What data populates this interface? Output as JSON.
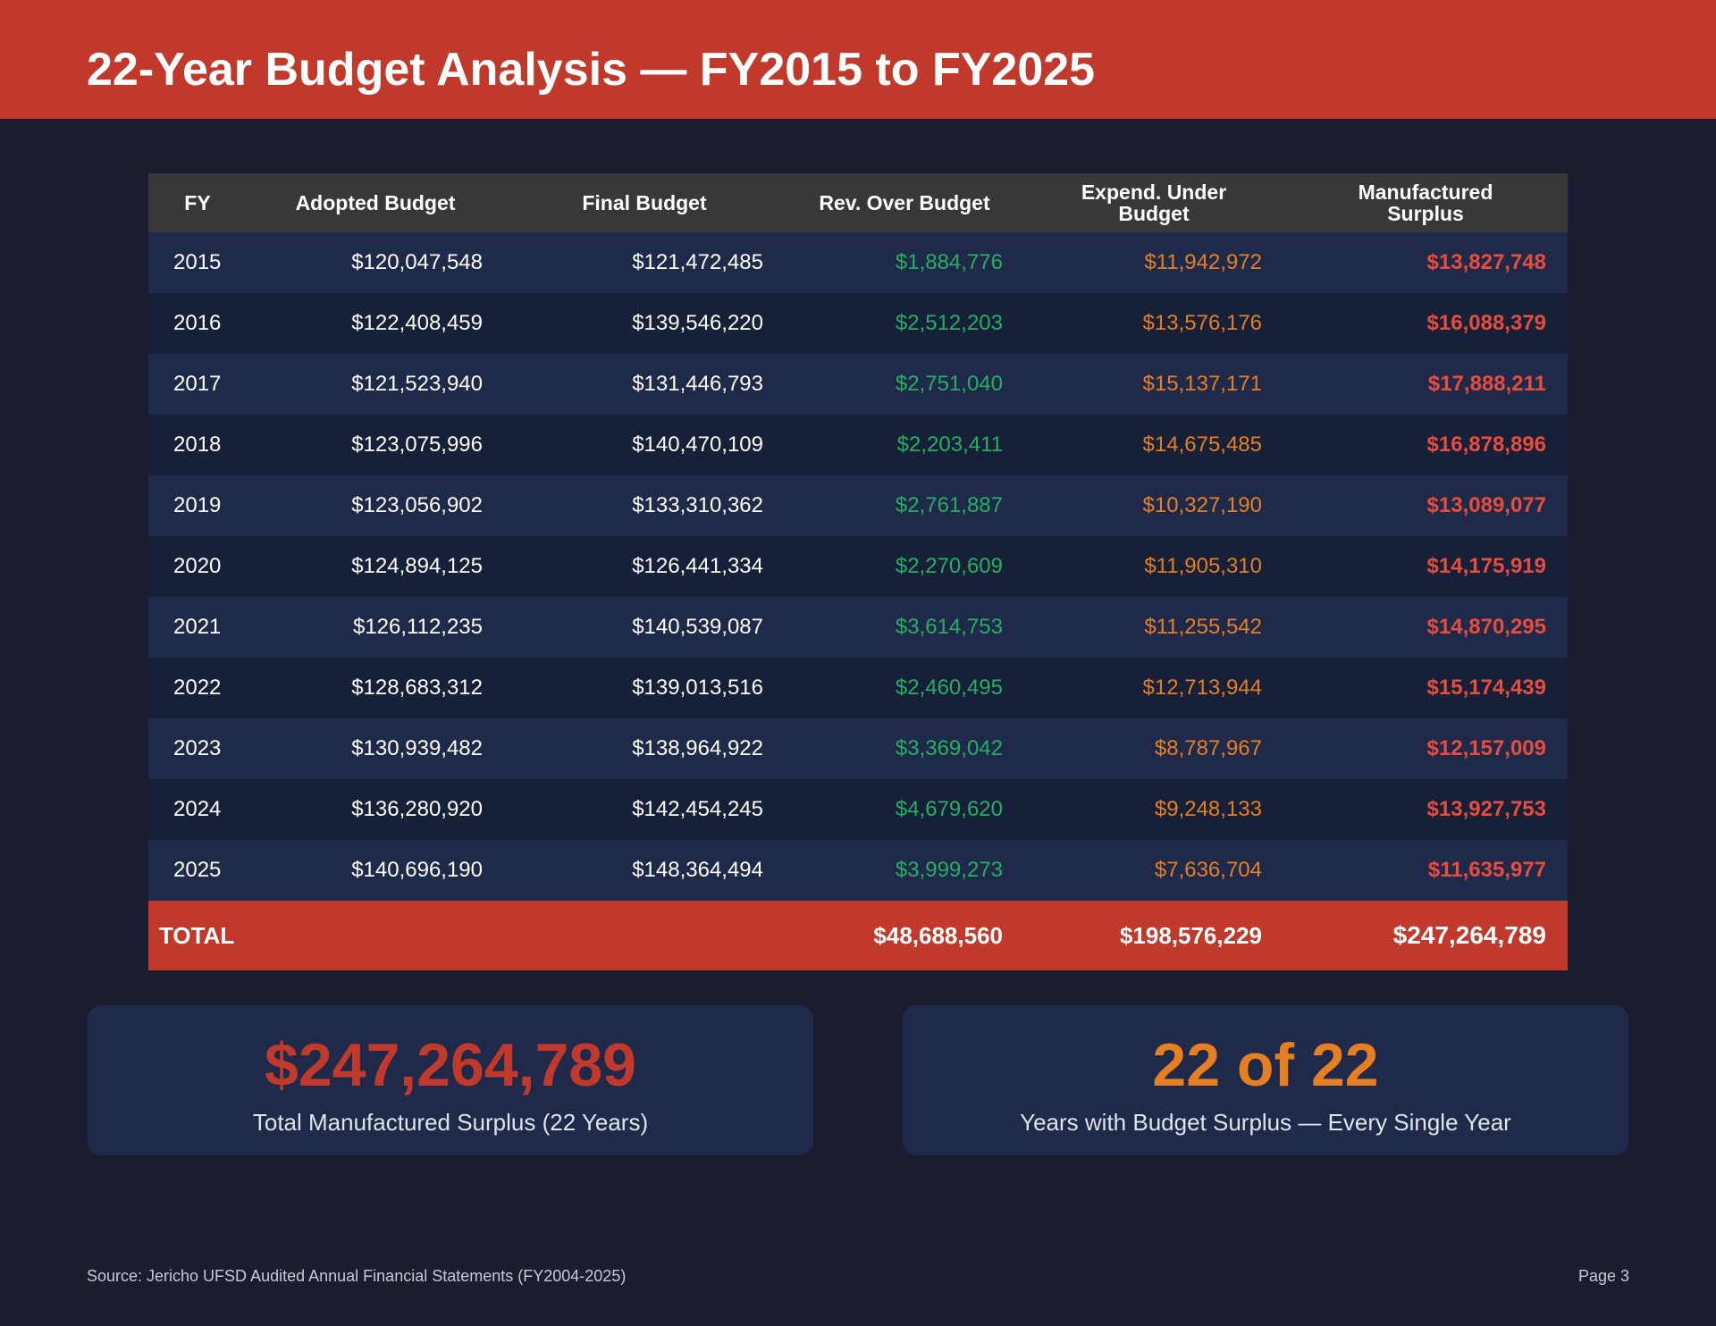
{
  "header": {
    "title": "22-Year Budget Analysis — FY2015 to FY2025"
  },
  "table": {
    "columns": [
      "FY",
      "Adopted Budget",
      "Final Budget",
      "Rev. Over Budget",
      "Expend. Under Budget",
      "Manufactured Surplus"
    ],
    "rows": [
      [
        "2015",
        "$120,047,548",
        "$121,472,485",
        "$1,884,776",
        "$11,942,972",
        "$13,827,748"
      ],
      [
        "2016",
        "$122,408,459",
        "$139,546,220",
        "$2,512,203",
        "$13,576,176",
        "$16,088,379"
      ],
      [
        "2017",
        "$121,523,940",
        "$131,446,793",
        "$2,751,040",
        "$15,137,171",
        "$17,888,211"
      ],
      [
        "2018",
        "$123,075,996",
        "$140,470,109",
        "$2,203,411",
        "$14,675,485",
        "$16,878,896"
      ],
      [
        "2019",
        "$123,056,902",
        "$133,310,362",
        "$2,761,887",
        "$10,327,190",
        "$13,089,077"
      ],
      [
        "2020",
        "$124,894,125",
        "$126,441,334",
        "$2,270,609",
        "$11,905,310",
        "$14,175,919"
      ],
      [
        "2021",
        "$126,112,235",
        "$140,539,087",
        "$3,614,753",
        "$11,255,542",
        "$14,870,295"
      ],
      [
        "2022",
        "$128,683,312",
        "$139,013,516",
        "$2,460,495",
        "$12,713,944",
        "$15,174,439"
      ],
      [
        "2023",
        "$130,939,482",
        "$138,964,922",
        "$3,369,042",
        "$8,787,967",
        "$12,157,009"
      ],
      [
        "2024",
        "$136,280,920",
        "$142,454,245",
        "$4,679,620",
        "$9,248,133",
        "$13,927,753"
      ],
      [
        "2025",
        "$140,696,190",
        "$148,364,494",
        "$3,999,273",
        "$7,636,704",
        "$11,635,977"
      ]
    ],
    "total": {
      "label": "TOTAL",
      "rev_over": "$48,688,560",
      "expend_under": "$198,576,229",
      "surplus": "$247,264,789"
    }
  },
  "cards": {
    "surplus": {
      "value": "$247,264,789",
      "caption": "Total Manufactured Surplus (22 Years)"
    },
    "years": {
      "value": "22 of 22",
      "caption": "Years with Budget Surplus — Every Single Year"
    }
  },
  "footer": {
    "source": "Source: Jericho UFSD Audited Annual Financial Statements (FY2004-2025)",
    "page": "Page 3"
  },
  "colors": {
    "header_bg": "#c0392b",
    "page_bg": "#1b1c30",
    "revenue_green": "#27ae60",
    "expend_orange": "#e67e22",
    "surplus_red": "#e74c3c"
  }
}
